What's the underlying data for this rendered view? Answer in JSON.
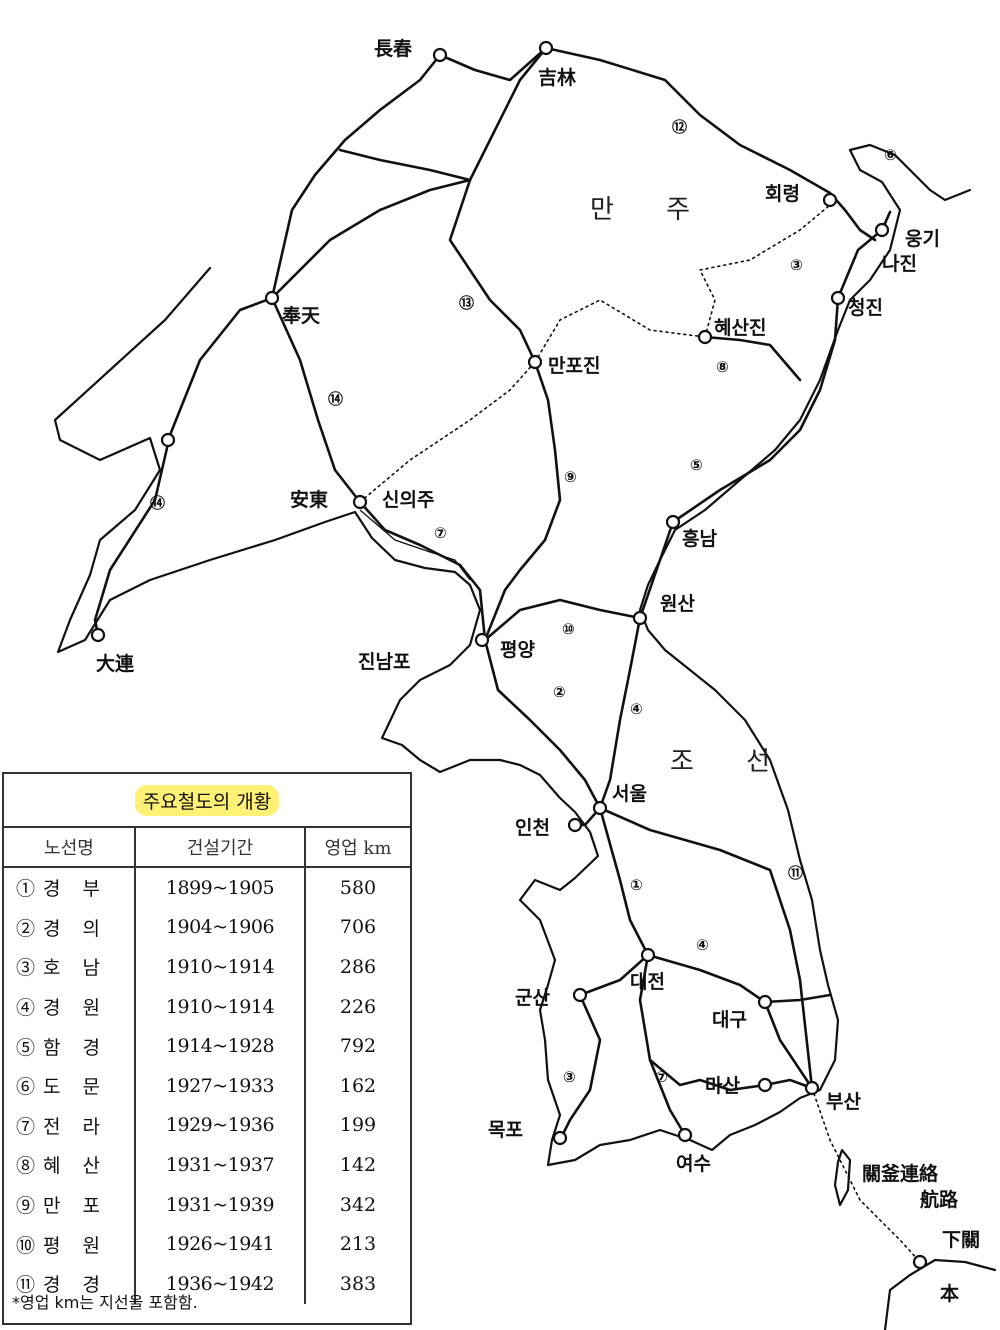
{
  "regions": {
    "manchuria": "만 주",
    "korea": "조 선"
  },
  "cities": {
    "changchun": "長春",
    "jilin": "吉林",
    "hoeryong": "회령",
    "unggi": "웅기",
    "najin": "나진",
    "chongjin": "청진",
    "hyesanjin": "혜산진",
    "fengtian": "奉天",
    "manpojin": "만포진",
    "andong": "安東",
    "sinuiju": "신의주",
    "hungnam": "흥남",
    "dalian": "大連",
    "wonsan": "원산",
    "jinnampo": "진남포",
    "pyongyang": "평양",
    "seoul": "서울",
    "incheon": "인천",
    "daejeon": "대전",
    "gunsan": "군산",
    "daegu": "대구",
    "masan": "마산",
    "busan": "부산",
    "mokpo": "목포",
    "yeosu": "여수",
    "ferry_line": "關釜連絡",
    "ferry_route": "航路",
    "shimonoseki": "下關",
    "japan": "本"
  },
  "route_labels": [
    "①",
    "②",
    "③",
    "④",
    "⑤",
    "⑥",
    "⑦",
    "⑧",
    "⑨",
    "⑩",
    "⑪",
    "⑫",
    "⑬",
    "⑭"
  ],
  "table": {
    "title": "주요철도의 개황",
    "headers": [
      "노선명",
      "건설기간",
      "영업 km"
    ],
    "rows": [
      {
        "name": "①경 부",
        "period": "1899~1905",
        "km": "580"
      },
      {
        "name": "②경 의",
        "period": "1904~1906",
        "km": "706"
      },
      {
        "name": "③호 남",
        "period": "1910~1914",
        "km": "286"
      },
      {
        "name": "④경 원",
        "period": "1910~1914",
        "km": "226"
      },
      {
        "name": "⑤함 경",
        "period": "1914~1928",
        "km": "792"
      },
      {
        "name": "⑥도 문",
        "period": "1927~1933",
        "km": "162"
      },
      {
        "name": "⑦전 라",
        "period": "1929~1936",
        "km": "199"
      },
      {
        "name": "⑧혜 산",
        "period": "1931~1937",
        "km": "142"
      },
      {
        "name": "⑨만 포",
        "period": "1931~1939",
        "km": "342"
      },
      {
        "name": "⑩평 원",
        "period": "1926~1941",
        "km": "213"
      },
      {
        "name": "⑪경 경",
        "period": "1936~1942",
        "km": "383"
      }
    ],
    "note": "*영업 km는 지선을 포함함."
  }
}
